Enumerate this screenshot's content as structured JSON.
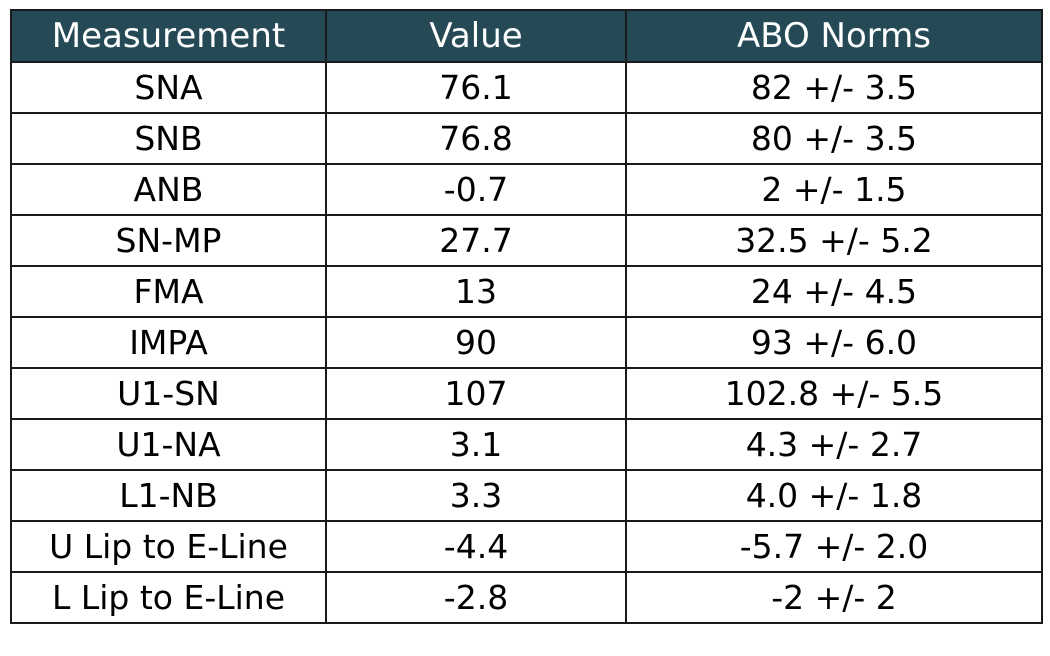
{
  "table": {
    "headers": [
      "Measurement",
      "Value",
      "ABO Norms"
    ],
    "rows": [
      [
        "SNA",
        "76.1",
        "82 +/- 3.5"
      ],
      [
        "SNB",
        "76.8",
        "80 +/- 3.5"
      ],
      [
        "ANB",
        "-0.7",
        "2 +/- 1.5"
      ],
      [
        "SN-MP",
        "27.7",
        "32.5 +/- 5.2"
      ],
      [
        "FMA",
        "13",
        "24 +/- 4.5"
      ],
      [
        "IMPA",
        "90",
        "93 +/- 6.0"
      ],
      [
        "U1-SN",
        "107",
        "102.8 +/- 5.5"
      ],
      [
        "U1-NA",
        "3.1",
        "4.3 +/- 2.7"
      ],
      [
        "L1-NB",
        "3.3",
        "4.0 +/- 1.8"
      ],
      [
        "U Lip to E-Line",
        "-4.4",
        "-5.7 +/- 2.0"
      ],
      [
        "L Lip to E-Line",
        "-2.8",
        "-2 +/- 2"
      ]
    ]
  },
  "colors": {
    "header_bg": "#254a56",
    "header_text": "#ffffff",
    "border": "#1a1a1a"
  }
}
